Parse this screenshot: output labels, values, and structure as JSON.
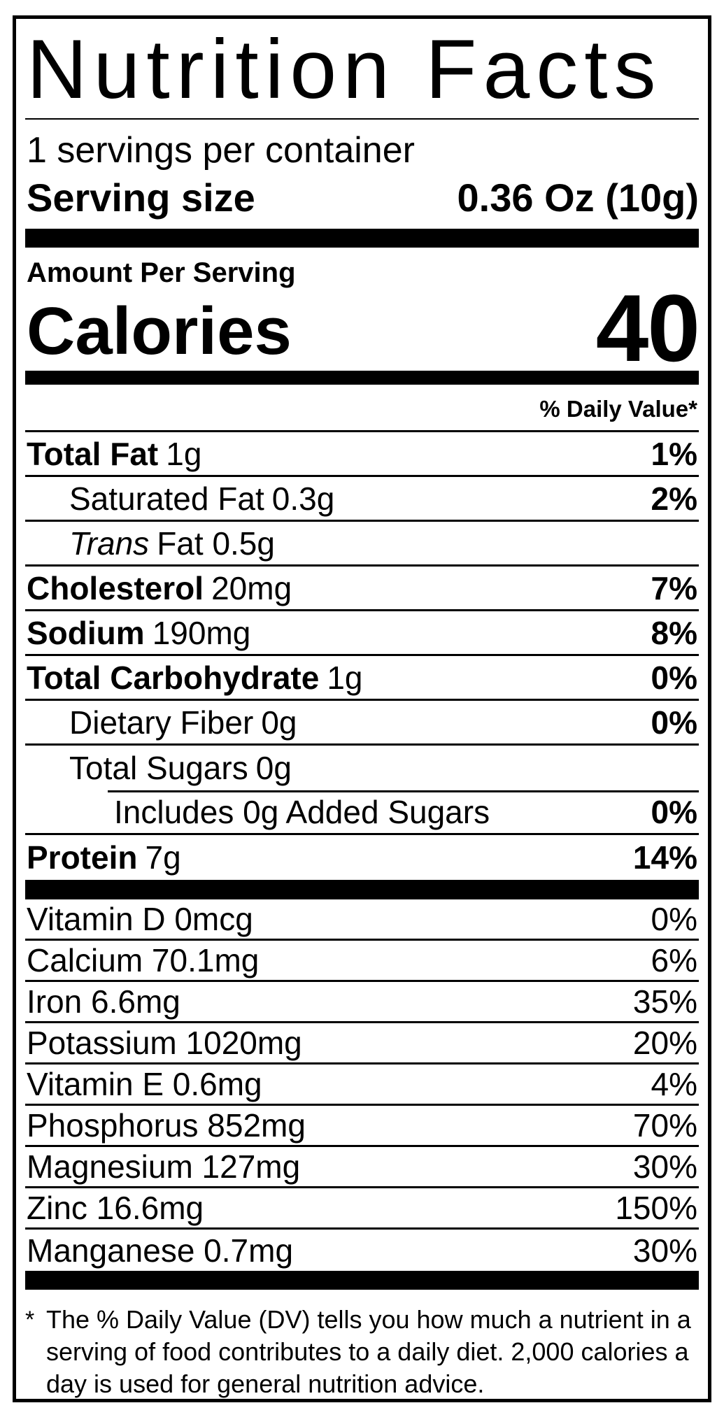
{
  "label": {
    "title": "Nutrition Facts",
    "servings_per_container": "1 servings per container",
    "serving_size_label": "Serving size",
    "serving_size_value": "0.36 Oz (10g)",
    "amount_per_serving": "Amount Per Serving",
    "calories_label": "Calories",
    "calories_value": "40",
    "daily_value_header": "% Daily Value*",
    "main_rows": [
      {
        "name": "Total Fat",
        "amount": "1g",
        "dv": "1%"
      },
      {
        "name": "Saturated Fat",
        "amount": "0.3g",
        "dv": "2%"
      },
      {
        "name": "Trans",
        "amount": "Fat 0.5g",
        "dv": ""
      },
      {
        "name": "Cholesterol",
        "amount": "20mg",
        "dv": "7%"
      },
      {
        "name": "Sodium",
        "amount": "190mg",
        "dv": "8%"
      },
      {
        "name": "Total Carbohydrate",
        "amount": "1g",
        "dv": "0%"
      },
      {
        "name": "Dietary Fiber",
        "amount": "0g",
        "dv": "0%"
      },
      {
        "name": "Total Sugars",
        "amount": "0g",
        "dv": ""
      },
      {
        "name": "Includes 0g Added Sugars",
        "amount": "",
        "dv": "0%"
      },
      {
        "name": "Protein",
        "amount": "7g",
        "dv": "14%"
      }
    ],
    "vitamin_rows": [
      {
        "name": "Vitamin D 0mcg",
        "dv": "0%"
      },
      {
        "name": "Calcium 70.1mg",
        "dv": "6%"
      },
      {
        "name": "Iron 6.6mg",
        "dv": "35%"
      },
      {
        "name": "Potassium 1020mg",
        "dv": "20%"
      },
      {
        "name": "Vitamin E 0.6mg",
        "dv": "4%"
      },
      {
        "name": "Phosphorus 852mg",
        "dv": "70%"
      },
      {
        "name": "Magnesium 127mg",
        "dv": "30%"
      },
      {
        "name": "Zinc 16.6mg",
        "dv": "150%"
      },
      {
        "name": "Manganese 0.7mg",
        "dv": "30%"
      }
    ],
    "footnote_marker": "*",
    "footnote": "The % Daily Value (DV) tells you how much a nutrient in a serving of food contributes to a daily diet. 2,000 calories a day is used for general nutrition advice.",
    "colors": {
      "ink": "#000000",
      "paper": "#ffffff"
    }
  }
}
